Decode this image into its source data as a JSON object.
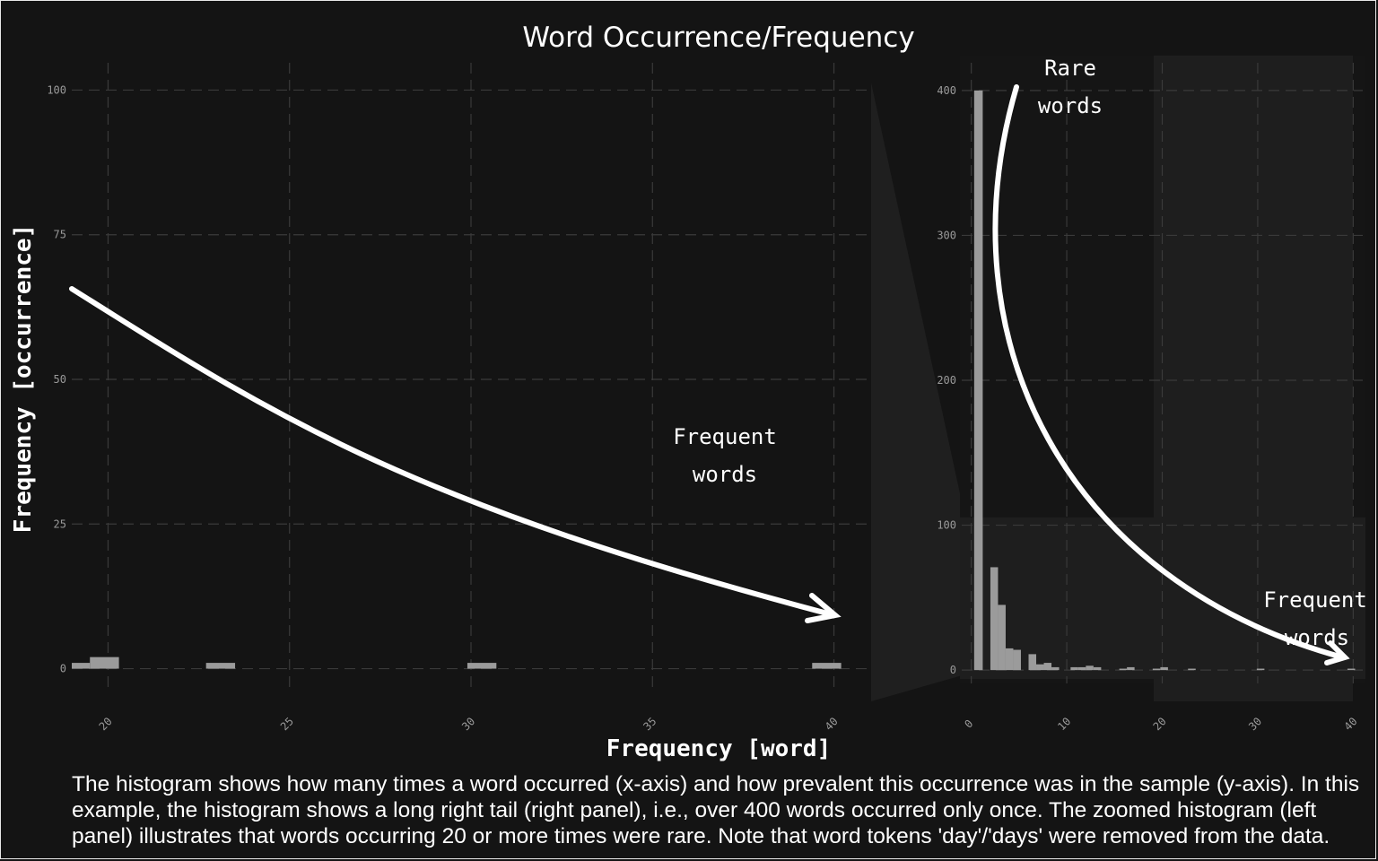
{
  "chart_data": [
    {
      "panel": "main",
      "type": "bar",
      "title": "Word Occurrence/Frequency",
      "xlabel": "Frequency [word]",
      "ylabel": "Frequency [occurrence]",
      "xlim": [
        19,
        41
      ],
      "ylim": [
        -1,
        101
      ],
      "xticks": [
        "20",
        "25",
        "30",
        "35",
        "40"
      ],
      "yticks": [
        "0",
        "25",
        "50",
        "75",
        "100"
      ],
      "bins": [
        {
          "x0": 19,
          "x1": 19.5,
          "y": 1
        },
        {
          "x0": 19.5,
          "x1": 20.3,
          "y": 2
        },
        {
          "x0": 22.7,
          "x1": 23.5,
          "y": 1
        },
        {
          "x0": 29.9,
          "x1": 30.7,
          "y": 1
        },
        {
          "x0": 39.4,
          "x1": 40.2,
          "y": 1
        }
      ],
      "annotation": {
        "line1": "Frequent",
        "line2": "words"
      }
    },
    {
      "panel": "zoom",
      "type": "bar",
      "xlim": [
        -1,
        41
      ],
      "ylim": [
        -3,
        403
      ],
      "xticks": [
        "0",
        "10",
        "20",
        "30",
        "40"
      ],
      "yticks": [
        "0",
        "100",
        "200",
        "300",
        "400"
      ],
      "bins": [
        {
          "x0": 0.3,
          "x1": 1.2,
          "y": 400
        },
        {
          "x0": 2.0,
          "x1": 2.8,
          "y": 71
        },
        {
          "x0": 2.8,
          "x1": 3.6,
          "y": 45
        },
        {
          "x0": 3.6,
          "x1": 4.4,
          "y": 15
        },
        {
          "x0": 4.4,
          "x1": 5.2,
          "y": 14
        },
        {
          "x0": 6.0,
          "x1": 6.8,
          "y": 11
        },
        {
          "x0": 6.8,
          "x1": 7.6,
          "y": 4
        },
        {
          "x0": 7.6,
          "x1": 8.4,
          "y": 5
        },
        {
          "x0": 8.4,
          "x1": 9.2,
          "y": 2
        },
        {
          "x0": 10.4,
          "x1": 11.2,
          "y": 2
        },
        {
          "x0": 11.2,
          "x1": 12.0,
          "y": 2
        },
        {
          "x0": 12.0,
          "x1": 12.8,
          "y": 3
        },
        {
          "x0": 12.8,
          "x1": 13.6,
          "y": 2
        },
        {
          "x0": 15.5,
          "x1": 16.3,
          "y": 1
        },
        {
          "x0": 16.3,
          "x1": 17.1,
          "y": 2
        },
        {
          "x0": 19.0,
          "x1": 19.8,
          "y": 1
        },
        {
          "x0": 19.8,
          "x1": 20.6,
          "y": 2
        },
        {
          "x0": 22.7,
          "x1": 23.5,
          "y": 1
        },
        {
          "x0": 29.9,
          "x1": 30.7,
          "y": 1
        },
        {
          "x0": 39.4,
          "x1": 40.2,
          "y": 1
        }
      ],
      "annotation_top": {
        "line1": "Rare",
        "line2": "words"
      },
      "annotation_bottom": {
        "line1": "Frequent",
        "line2": "words"
      }
    }
  ],
  "caption": {
    "line1": "The histogram shows how many times a word occurred (x-axis) and how prevalent this occurrence was in the sample (y-axis). In this",
    "line2": "example, the histogram shows a long right tail (right panel), i.e., over 400 words occurred only once. The zoomed histogram (left",
    "line3": "panel) illustrates that words occurring 20 or more times were rare. Note that word tokens 'day'/'days' were removed from the data."
  },
  "colors": {
    "background": "#141414",
    "bars": "#9b9b9b",
    "grid": "#3a3a3a",
    "text": "#ffffff",
    "ticks": "#9a9a9a"
  }
}
